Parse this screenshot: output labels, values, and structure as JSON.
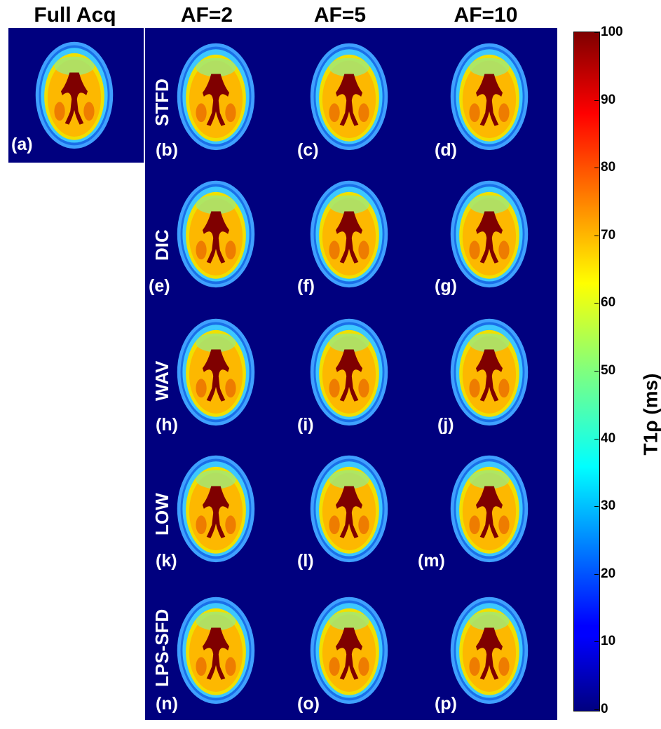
{
  "columns": [
    "Full Acq",
    "AF=2",
    "AF=5",
    "AF=10"
  ],
  "rows": [
    "STFD",
    "DIC",
    "WAV",
    "LOW",
    "LPS-SFD"
  ],
  "panel_labels": [
    "(a)",
    "(b)",
    "(c)",
    "(d)",
    "(e)",
    "(f)",
    "(g)",
    "(h)",
    "(i)",
    "(j)",
    "(k)",
    "(l)",
    "(m)",
    "(n)",
    "(o)",
    "(p)"
  ],
  "colorbar": {
    "title": "T1ρ (ms)",
    "ticks": [
      "100",
      "90",
      "80",
      "70",
      "60",
      "50",
      "40",
      "30",
      "20",
      "10",
      "0"
    ],
    "range": [
      0,
      100
    ],
    "colormap": "jet"
  },
  "colors": {
    "background": "#00007f"
  }
}
